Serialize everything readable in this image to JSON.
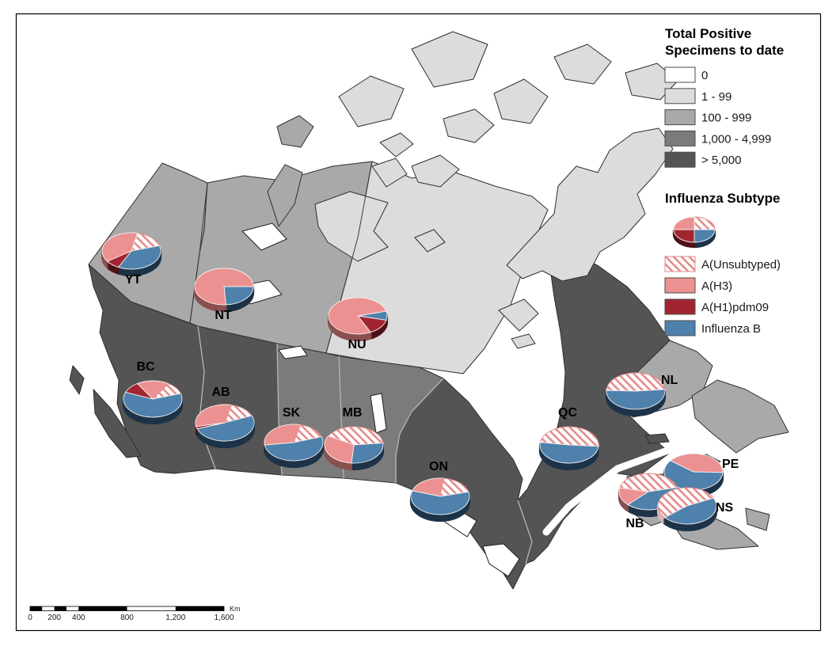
{
  "legend": {
    "specimens": {
      "title": [
        "Total Positive",
        "Specimens to date"
      ],
      "classes": [
        {
          "label": "0",
          "color": "#ffffff"
        },
        {
          "label": "1 - 99",
          "color": "#dcdcdc"
        },
        {
          "label": "100 - 999",
          "color": "#a9a9a9"
        },
        {
          "label": "1,000 - 4,999",
          "color": "#7b7b7b"
        },
        {
          "label": "> 5,000",
          "color": "#545454"
        }
      ]
    },
    "subtype": {
      "title": "Influenza Subtype",
      "items": [
        {
          "key": "unsubtyped",
          "label": "A(Unsubtyped)"
        },
        {
          "key": "h3",
          "label": "A(H3)"
        },
        {
          "key": "h1",
          "label": "A(H1)pdm09"
        },
        {
          "key": "b",
          "label": "Influenza B"
        }
      ],
      "sample_pie": {
        "start_deg": 0,
        "slices": [
          {
            "subtype": "unsubtyped",
            "pct": 25
          },
          {
            "subtype": "b",
            "pct": 25
          },
          {
            "subtype": "h1",
            "pct": 25
          },
          {
            "subtype": "h3",
            "pct": 25
          }
        ]
      }
    }
  },
  "colors": {
    "subtype": {
      "unsubtyped": "hatch",
      "h3": "#ec9191",
      "h1": "#a12530",
      "b": "#4e81ac"
    },
    "subtype_base": {
      "unsubtyped": "#dcb6b6",
      "h3": "#8a5050",
      "h1": "#4c1117",
      "b": "#1c3348"
    },
    "hatch_line": "#e58b8b",
    "map_outline": "#2f2f2f"
  },
  "scalebar": {
    "unit": "Km",
    "tick_labels": [
      "0",
      "200",
      "400",
      "800",
      "1,200",
      "1,600"
    ],
    "tick_values": [
      0,
      200,
      400,
      800,
      1200,
      1600
    ],
    "max": 1600,
    "segments": [
      {
        "from": 0,
        "to": 100,
        "fill": "black"
      },
      {
        "from": 100,
        "to": 200,
        "fill": "white"
      },
      {
        "from": 200,
        "to": 300,
        "fill": "black"
      },
      {
        "from": 300,
        "to": 400,
        "fill": "white"
      },
      {
        "from": 400,
        "to": 800,
        "fill": "black"
      },
      {
        "from": 800,
        "to": 1200,
        "fill": "white"
      },
      {
        "from": 1200,
        "to": 1600,
        "fill": "black"
      }
    ]
  },
  "chart_data": {
    "type": "map-pie",
    "map": "Canada provinces and territories",
    "choropleth_measure": "Total Positive Specimens to date",
    "pie_measure": "Influenza Subtype share (%)",
    "pie_series_keys": [
      "unsubtyped",
      "h3",
      "h1",
      "b"
    ],
    "regions": [
      {
        "id": "YT",
        "label": "YT",
        "specimens_class": "100 - 999",
        "pie": {
          "start_deg": 12,
          "slices": [
            {
              "subtype": "unsubtyped",
              "pct": 17
            },
            {
              "subtype": "b",
              "pct": 37
            },
            {
              "subtype": "h1",
              "pct": 8
            },
            {
              "subtype": "h3",
              "pct": 38
            }
          ]
        }
      },
      {
        "id": "NT",
        "label": "NT",
        "specimens_class": "100 - 999",
        "pie": {
          "start_deg": 90,
          "slices": [
            {
              "subtype": "b",
              "pct": 24
            },
            {
              "subtype": "h3",
              "pct": 76
            }
          ]
        }
      },
      {
        "id": "NU",
        "label": "NU",
        "specimens_class": "1 - 99",
        "pie": {
          "start_deg": 75,
          "slices": [
            {
              "subtype": "b",
              "pct": 8
            },
            {
              "subtype": "h1",
              "pct": 14
            },
            {
              "subtype": "h3",
              "pct": 78
            }
          ]
        }
      },
      {
        "id": "BC",
        "label": "BC",
        "specimens_class": "> 5,000",
        "pie": {
          "start_deg": 328,
          "slices": [
            {
              "subtype": "h3",
              "pct": 18
            },
            {
              "subtype": "unsubtyped",
              "pct": 11
            },
            {
              "subtype": "b",
              "pct": 61
            },
            {
              "subtype": "h1",
              "pct": 10
            }
          ]
        }
      },
      {
        "id": "AB",
        "label": "AB",
        "specimens_class": "> 5,000",
        "pie": {
          "start_deg": 258,
          "slices": [
            {
              "subtype": "h3",
              "pct": 32
            },
            {
              "subtype": "unsubtyped",
              "pct": 15
            },
            {
              "subtype": "b",
              "pct": 51
            },
            {
              "subtype": "h1",
              "pct": 2
            }
          ]
        }
      },
      {
        "id": "SK",
        "label": "SK",
        "specimens_class": "1,000 - 4,999",
        "pie": {
          "start_deg": 262,
          "slices": [
            {
              "subtype": "h3",
              "pct": 31
            },
            {
              "subtype": "unsubtyped",
              "pct": 16
            },
            {
              "subtype": "b",
              "pct": 53
            }
          ]
        }
      },
      {
        "id": "MB",
        "label": "MB",
        "specimens_class": "1,000 - 4,999",
        "pie": {
          "start_deg": 300,
          "slices": [
            {
              "subtype": "unsubtyped",
              "pct": 40
            },
            {
              "subtype": "b",
              "pct": 28
            },
            {
              "subtype": "h3",
              "pct": 32
            }
          ]
        }
      },
      {
        "id": "ON",
        "label": "ON",
        "specimens_class": "> 5,000",
        "pie": {
          "start_deg": 288,
          "slices": [
            {
              "subtype": "h3",
              "pct": 22
            },
            {
              "subtype": "unsubtyped",
              "pct": 19
            },
            {
              "subtype": "b",
              "pct": 59
            }
          ]
        }
      },
      {
        "id": "QC",
        "label": "QC",
        "specimens_class": "> 5,000",
        "pie": {
          "start_deg": 278,
          "slices": [
            {
              "subtype": "unsubtyped",
              "pct": 49
            },
            {
              "subtype": "b",
              "pct": 51
            }
          ]
        }
      },
      {
        "id": "NL",
        "label": "NL",
        "specimens_class": "100 - 999",
        "pie": {
          "start_deg": 272,
          "slices": [
            {
              "subtype": "unsubtyped",
              "pct": 48
            },
            {
              "subtype": "b",
              "pct": 52
            }
          ]
        }
      },
      {
        "id": "PE",
        "label": "PE",
        "specimens_class": "100 - 999",
        "pie": {
          "start_deg": 308,
          "slices": [
            {
              "subtype": "h3",
              "pct": 40
            },
            {
              "subtype": "b",
              "pct": 60
            }
          ]
        }
      },
      {
        "id": "NB",
        "label": "NB",
        "specimens_class": "100 - 999",
        "pie": {
          "start_deg": 282,
          "slices": [
            {
              "subtype": "unsubtyped",
              "pct": 43
            },
            {
              "subtype": "b",
              "pct": 41
            },
            {
              "subtype": "h3",
              "pct": 16
            }
          ]
        }
      },
      {
        "id": "NS",
        "label": "NS",
        "specimens_class": "100 - 999",
        "pie": {
          "start_deg": 230,
          "slices": [
            {
              "subtype": "unsubtyped",
              "pct": 54
            },
            {
              "subtype": "b",
              "pct": 46
            }
          ]
        }
      }
    ]
  }
}
